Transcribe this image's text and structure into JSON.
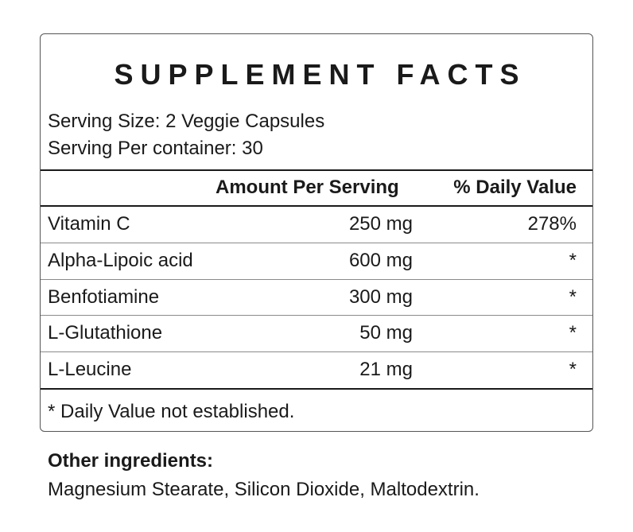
{
  "facts": {
    "title": "SUPPLEMENT FACTS",
    "serving_size": "Serving Size: 2 Veggie Capsules",
    "servings_per_container": "Serving Per container: 30",
    "header_amount": "Amount Per Serving",
    "header_daily_value": "% Daily Value",
    "rows": [
      {
        "name": "Vitamin C",
        "amount": "250 mg",
        "dv": "278%"
      },
      {
        "name": "Alpha-Lipoic acid",
        "amount": "600 mg",
        "dv": "*"
      },
      {
        "name": "Benfotiamine",
        "amount": "300 mg",
        "dv": "*"
      },
      {
        "name": "L-Glutathione",
        "amount": "50 mg",
        "dv": "*"
      },
      {
        "name": "L-Leucine",
        "amount": "21 mg",
        "dv": "*"
      }
    ],
    "footnote": "*  Daily Value not established."
  },
  "other_ingredients": {
    "heading": "Other ingredients:",
    "text": "Magnesium Stearate, Silicon Dioxide, Maltodextrin."
  }
}
